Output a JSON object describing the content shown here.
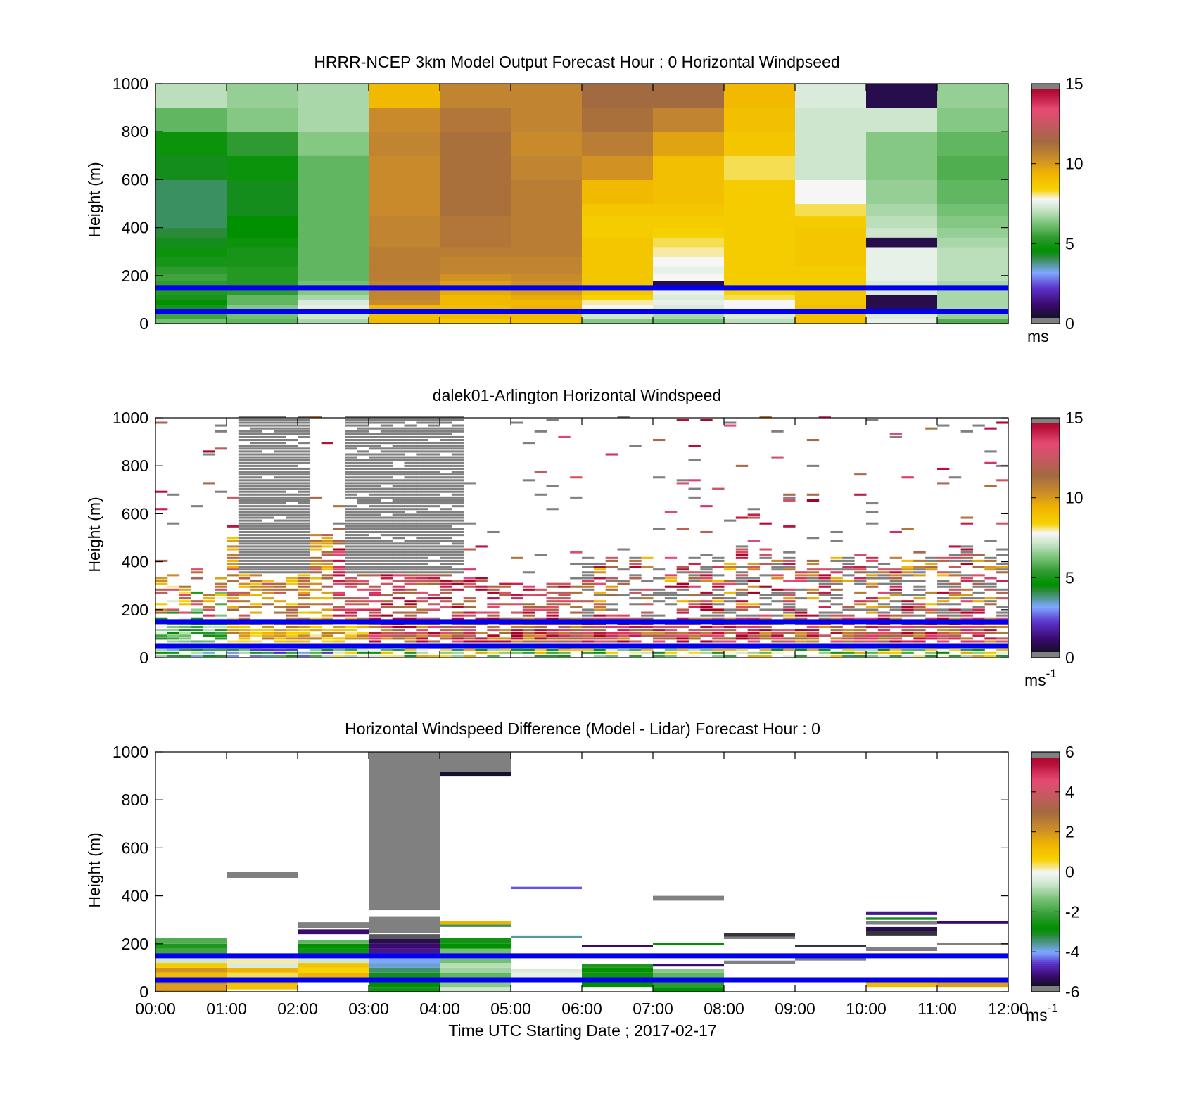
{
  "figure": {
    "xlabel": "Time UTC  Starting Date ; 2017-02-17",
    "x_ticks": [
      "00:00",
      "01:00",
      "02:00",
      "03:00",
      "04:00",
      "05:00",
      "06:00",
      "07:00",
      "08:00",
      "09:00",
      "10:00",
      "11:00",
      "12:00"
    ],
    "y_ticks": [
      "0",
      "200",
      "400",
      "600",
      "800",
      "1000"
    ],
    "reference_lines": {
      "heights_m": [
        150,
        50
      ],
      "color": "#0000ee"
    }
  },
  "chart_data": [
    {
      "type": "heatmap",
      "title": "HRRR-NCEP 3km Model Output   Forecast Hour : 0 Horizontal Windpseed",
      "ylabel": "Height (m)",
      "xlim": [
        0,
        12
      ],
      "ylim": [
        0,
        1000
      ],
      "colorbar": {
        "ticks": [
          "0",
          "5",
          "10",
          "15"
        ],
        "range": [
          0,
          15
        ],
        "unit": "ms"
      },
      "layer_bottoms_m": [
        0,
        20,
        40,
        60,
        80,
        100,
        120,
        150,
        180,
        210,
        240,
        280,
        320,
        360,
        400,
        450,
        500,
        600,
        700,
        800,
        900
      ],
      "hours": [
        0,
        1,
        2,
        3,
        4,
        5,
        6,
        7,
        8,
        9,
        10,
        11
      ],
      "values": [
        [
          6.2,
          6.0,
          6.8,
          9.2,
          8.8,
          9.0,
          6.4,
          6.2,
          7.0,
          9.0,
          7.6,
          5.8
        ],
        [
          5.6,
          6.2,
          7.2,
          9.0,
          9.2,
          9.2,
          7.2,
          6.8,
          7.4,
          9.0,
          7.4,
          6.6
        ],
        [
          5.2,
          6.6,
          7.2,
          9.0,
          9.2,
          9.4,
          7.4,
          7.2,
          7.6,
          9.0,
          0.8,
          6.8
        ],
        [
          5.0,
          6.4,
          7.6,
          9.2,
          9.0,
          9.4,
          7.8,
          7.4,
          7.8,
          9.0,
          0.8,
          6.8
        ],
        [
          4.6,
          6.0,
          7.4,
          10.4,
          9.2,
          9.2,
          8.0,
          7.6,
          7.8,
          8.8,
          0.8,
          6.8
        ],
        [
          5.0,
          6.0,
          6.8,
          10.6,
          9.2,
          9.6,
          8.4,
          7.4,
          8.2,
          8.8,
          0.8,
          6.8
        ],
        [
          5.2,
          5.4,
          6.4,
          10.6,
          9.6,
          10.0,
          8.8,
          7.6,
          8.4,
          8.8,
          7.4,
          6.8
        ],
        [
          5.4,
          5.2,
          6.2,
          10.6,
          9.8,
          10.2,
          8.8,
          0.8,
          8.6,
          8.6,
          7.4,
          6.8
        ],
        [
          5.6,
          5.2,
          6.0,
          10.8,
          10.2,
          10.4,
          8.8,
          7.8,
          8.6,
          8.6,
          7.6,
          7.0
        ],
        [
          5.4,
          5.2,
          6.0,
          10.8,
          10.6,
          10.6,
          8.8,
          7.6,
          8.6,
          8.6,
          7.6,
          7.0
        ],
        [
          5.0,
          5.0,
          6.0,
          10.8,
          10.6,
          10.6,
          8.8,
          7.8,
          8.6,
          8.8,
          7.6,
          7.0
        ],
        [
          4.8,
          5.0,
          6.0,
          10.8,
          10.8,
          10.8,
          8.8,
          8.0,
          8.6,
          8.8,
          7.6,
          7.0
        ],
        [
          4.4,
          4.8,
          6.0,
          10.6,
          11.0,
          10.8,
          8.8,
          8.2,
          8.6,
          8.8,
          0.8,
          6.8
        ],
        [
          4.2,
          4.6,
          6.0,
          10.6,
          11.0,
          10.8,
          8.6,
          8.4,
          8.6,
          8.8,
          7.2,
          6.6
        ],
        [
          4.0,
          4.6,
          6.0,
          10.6,
          11.0,
          10.8,
          8.6,
          8.6,
          8.6,
          8.6,
          7.0,
          6.4
        ],
        [
          4.0,
          4.4,
          6.0,
          10.4,
          11.2,
          10.8,
          8.8,
          8.8,
          8.6,
          8.2,
          6.8,
          6.2
        ],
        [
          4.0,
          4.4,
          6.0,
          10.4,
          11.2,
          10.8,
          9.2,
          9.0,
          8.6,
          7.8,
          6.6,
          6.0
        ],
        [
          4.4,
          4.8,
          6.0,
          10.4,
          11.2,
          10.6,
          10.2,
          9.0,
          8.2,
          7.2,
          6.4,
          5.8
        ],
        [
          4.8,
          5.4,
          6.4,
          10.6,
          11.2,
          10.4,
          10.8,
          9.8,
          8.8,
          7.2,
          6.4,
          6.0
        ],
        [
          6.0,
          6.4,
          6.8,
          10.4,
          11.0,
          10.6,
          11.2,
          10.6,
          9.0,
          7.2,
          7.2,
          6.4
        ],
        [
          7.0,
          6.6,
          6.8,
          9.2,
          10.6,
          10.6,
          11.4,
          11.4,
          9.2,
          7.4,
          0.8,
          6.6
        ]
      ]
    },
    {
      "type": "heatmap",
      "title": "dalek01-Arlington  Horizontal Windspeed",
      "ylabel": "Height (m)",
      "xlim": [
        0,
        12
      ],
      "ylim": [
        0,
        1000
      ],
      "colorbar": {
        "ticks": [
          "0",
          "5",
          "10",
          "15"
        ],
        "range": [
          0,
          15
        ],
        "unit": "ms",
        "unit_exp": "-1"
      },
      "note_values": "irregular lidar scans; sentinel 15.5 = no-return (gray), null = missing"
    },
    {
      "type": "heatmap",
      "title": "Horizontal Windspeed Difference (Model - Lidar) Forecast Hour : 0",
      "ylabel": "Height (m)",
      "xlim": [
        0,
        12
      ],
      "ylim": [
        0,
        1000
      ],
      "colorbar": {
        "ticks": [
          "-6",
          "-4",
          "-2",
          "0",
          "2",
          "4",
          "6"
        ],
        "range": [
          -6,
          6
        ],
        "unit": "ms",
        "unit_exp": "-1"
      },
      "blocks": [
        {
          "t0": 0,
          "t1": 1,
          "h0": 0,
          "h1": 10,
          "v": 2.4
        },
        {
          "t0": 0,
          "t1": 1,
          "h0": 10,
          "h1": 30,
          "v": 1.8
        },
        {
          "t0": 0,
          "t1": 1,
          "h0": 30,
          "h1": 50,
          "v": 2.2
        },
        {
          "t0": 0,
          "t1": 1,
          "h0": 60,
          "h1": 80,
          "v": 1.2
        },
        {
          "t0": 0,
          "t1": 1,
          "h0": 80,
          "h1": 100,
          "v": 2.0
        },
        {
          "t0": 0,
          "t1": 1,
          "h0": 100,
          "h1": 120,
          "v": 0.8
        },
        {
          "t0": 0,
          "t1": 1,
          "h0": 120,
          "h1": 140,
          "v": -0.6
        },
        {
          "t0": 0,
          "t1": 1,
          "h0": 160,
          "h1": 180,
          "v": -2.0
        },
        {
          "t0": 0,
          "t1": 1,
          "h0": 180,
          "h1": 200,
          "v": -2.4
        },
        {
          "t0": 0,
          "t1": 1,
          "h0": 200,
          "h1": 225,
          "v": -1.8
        },
        {
          "t0": 1,
          "t1": 2,
          "h0": 0,
          "h1": 10,
          "v": 0
        },
        {
          "t0": 1,
          "t1": 2,
          "h0": 10,
          "h1": 30,
          "v": 1.0
        },
        {
          "t0": 1,
          "t1": 2,
          "h0": 30,
          "h1": 50,
          "v": 1.4
        },
        {
          "t0": 1,
          "t1": 2,
          "h0": 60,
          "h1": 80,
          "v": 0.4
        },
        {
          "t0": 1,
          "t1": 2,
          "h0": 80,
          "h1": 100,
          "v": 1.4
        },
        {
          "t0": 1,
          "t1": 2,
          "h0": 100,
          "h1": 120,
          "v": -0.4
        },
        {
          "t0": 1,
          "t1": 2,
          "h0": 120,
          "h1": 140,
          "v": 0.2
        },
        {
          "t0": 1,
          "t1": 2,
          "h0": 475,
          "h1": 500,
          "v": 6.5
        },
        {
          "t0": 2,
          "t1": 3,
          "h0": 60,
          "h1": 80,
          "v": 1.4
        },
        {
          "t0": 2,
          "t1": 3,
          "h0": 80,
          "h1": 100,
          "v": 0.6
        },
        {
          "t0": 2,
          "t1": 3,
          "h0": 100,
          "h1": 120,
          "v": 1.0
        },
        {
          "t0": 2,
          "t1": 3,
          "h0": 120,
          "h1": 140,
          "v": -0.6
        },
        {
          "t0": 2,
          "t1": 3,
          "h0": 160,
          "h1": 180,
          "v": -2.6
        },
        {
          "t0": 2,
          "t1": 3,
          "h0": 180,
          "h1": 200,
          "v": -2.8
        },
        {
          "t0": 2,
          "t1": 3,
          "h0": 200,
          "h1": 215,
          "v": -1.6
        },
        {
          "t0": 2,
          "t1": 3,
          "h0": 240,
          "h1": 260,
          "v": -5.2
        },
        {
          "t0": 2,
          "t1": 3,
          "h0": 265,
          "h1": 290,
          "v": 6.5
        },
        {
          "t0": 3,
          "t1": 4,
          "h0": 0,
          "h1": 20,
          "v": -2.6
        },
        {
          "t0": 3,
          "t1": 4,
          "h0": 20,
          "h1": 40,
          "v": -2.8
        },
        {
          "t0": 3,
          "t1": 4,
          "h0": 60,
          "h1": 80,
          "v": -3.0
        },
        {
          "t0": 3,
          "t1": 4,
          "h0": 80,
          "h1": 100,
          "v": -3.4
        },
        {
          "t0": 3,
          "t1": 4,
          "h0": 100,
          "h1": 120,
          "v": -3.8
        },
        {
          "t0": 3,
          "t1": 4,
          "h0": 120,
          "h1": 140,
          "v": -4.0
        },
        {
          "t0": 3,
          "t1": 4,
          "h0": 160,
          "h1": 180,
          "v": -5.0
        },
        {
          "t0": 3,
          "t1": 4,
          "h0": 180,
          "h1": 200,
          "v": -5.2
        },
        {
          "t0": 3,
          "t1": 4,
          "h0": 200,
          "h1": 220,
          "v": -5.4
        },
        {
          "t0": 3,
          "t1": 4,
          "h0": 220,
          "h1": 240,
          "v": -5.9
        },
        {
          "t0": 3,
          "t1": 4,
          "h0": 245,
          "h1": 315,
          "v": 6.5
        },
        {
          "t0": 3,
          "t1": 4,
          "h0": 340,
          "h1": 1000,
          "v": 6.5
        },
        {
          "t0": 4,
          "t1": 5,
          "h0": 0,
          "h1": 20,
          "v": -0.6
        },
        {
          "t0": 4,
          "t1": 5,
          "h0": 20,
          "h1": 40,
          "v": -1.2
        },
        {
          "t0": 4,
          "t1": 5,
          "h0": 60,
          "h1": 80,
          "v": -1.6
        },
        {
          "t0": 4,
          "t1": 5,
          "h0": 80,
          "h1": 100,
          "v": -1.0
        },
        {
          "t0": 4,
          "t1": 5,
          "h0": 100,
          "h1": 120,
          "v": -0.8
        },
        {
          "t0": 4,
          "t1": 5,
          "h0": 120,
          "h1": 140,
          "v": -1.4
        },
        {
          "t0": 4,
          "t1": 5,
          "h0": 160,
          "h1": 180,
          "v": -1.4
        },
        {
          "t0": 4,
          "t1": 5,
          "h0": 180,
          "h1": 200,
          "v": -2.8
        },
        {
          "t0": 4,
          "t1": 5,
          "h0": 200,
          "h1": 225,
          "v": -2.6
        },
        {
          "t0": 4,
          "t1": 5,
          "h0": 270,
          "h1": 280,
          "v": -3.4
        },
        {
          "t0": 4,
          "t1": 5,
          "h0": 280,
          "h1": 295,
          "v": 1.4
        },
        {
          "t0": 4,
          "t1": 5,
          "h0": 900,
          "h1": 915,
          "v": -5.6
        },
        {
          "t0": 4,
          "t1": 5,
          "h0": 915,
          "h1": 1000,
          "v": 6.5
        },
        {
          "t0": 5,
          "t1": 6,
          "h0": 60,
          "h1": 80,
          "v": -0.2
        },
        {
          "t0": 5,
          "t1": 6,
          "h0": 80,
          "h1": 95,
          "v": -0.4
        },
        {
          "t0": 5,
          "t1": 6,
          "h0": 225,
          "h1": 235,
          "v": -3.6
        },
        {
          "t0": 5,
          "t1": 6,
          "h0": 428,
          "h1": 438,
          "v": -4.4
        },
        {
          "t0": 6,
          "t1": 7,
          "h0": 20,
          "h1": 40,
          "v": -2.8
        },
        {
          "t0": 6,
          "t1": 7,
          "h0": 60,
          "h1": 80,
          "v": -2.6
        },
        {
          "t0": 6,
          "t1": 7,
          "h0": 80,
          "h1": 100,
          "v": -2.8
        },
        {
          "t0": 6,
          "t1": 7,
          "h0": 100,
          "h1": 115,
          "v": -2.4
        },
        {
          "t0": 6,
          "t1": 7,
          "h0": 185,
          "h1": 195,
          "v": -5.2
        },
        {
          "t0": 7,
          "t1": 8,
          "h0": 0,
          "h1": 20,
          "v": -2.8
        },
        {
          "t0": 7,
          "t1": 8,
          "h0": 20,
          "h1": 40,
          "v": -2.2
        },
        {
          "t0": 7,
          "t1": 8,
          "h0": 60,
          "h1": 80,
          "v": -1.6
        },
        {
          "t0": 7,
          "t1": 8,
          "h0": 80,
          "h1": 95,
          "v": -1.2
        },
        {
          "t0": 7,
          "t1": 8,
          "h0": 105,
          "h1": 115,
          "v": -5.2
        },
        {
          "t0": 7,
          "t1": 8,
          "h0": 195,
          "h1": 205,
          "v": -2.8
        },
        {
          "t0": 7,
          "t1": 8,
          "h0": 380,
          "h1": 400,
          "v": 6.5
        },
        {
          "t0": 8,
          "t1": 9,
          "h0": 115,
          "h1": 130,
          "v": 6.5
        },
        {
          "t0": 8,
          "t1": 9,
          "h0": 220,
          "h1": 230,
          "v": 6.5
        },
        {
          "t0": 8,
          "t1": 9,
          "h0": 230,
          "h1": 245,
          "v": -5.8
        },
        {
          "t0": 9,
          "t1": 10,
          "h0": 130,
          "h1": 145,
          "v": 6.5
        },
        {
          "t0": 9,
          "t1": 10,
          "h0": 185,
          "h1": 195,
          "v": -5.8
        },
        {
          "t0": 10,
          "t1": 11,
          "h0": 20,
          "h1": 40,
          "v": 1.2
        },
        {
          "t0": 10,
          "t1": 11,
          "h0": 170,
          "h1": 185,
          "v": 6.5
        },
        {
          "t0": 10,
          "t1": 11,
          "h0": 235,
          "h1": 255,
          "v": -5.8
        },
        {
          "t0": 10,
          "t1": 11,
          "h0": 255,
          "h1": 270,
          "v": -5.4
        },
        {
          "t0": 10,
          "t1": 11,
          "h0": 280,
          "h1": 295,
          "v": 6.5
        },
        {
          "t0": 10,
          "t1": 11,
          "h0": 300,
          "h1": 310,
          "v": -3.0
        },
        {
          "t0": 10,
          "t1": 11,
          "h0": 320,
          "h1": 335,
          "v": -5.0
        },
        {
          "t0": 11,
          "t1": 12,
          "h0": 20,
          "h1": 40,
          "v": 1.8
        },
        {
          "t0": 11,
          "t1": 12,
          "h0": 195,
          "h1": 205,
          "v": 6.5
        },
        {
          "t0": 11,
          "t1": 12,
          "h0": 285,
          "h1": 295,
          "v": -5.2
        }
      ]
    }
  ]
}
